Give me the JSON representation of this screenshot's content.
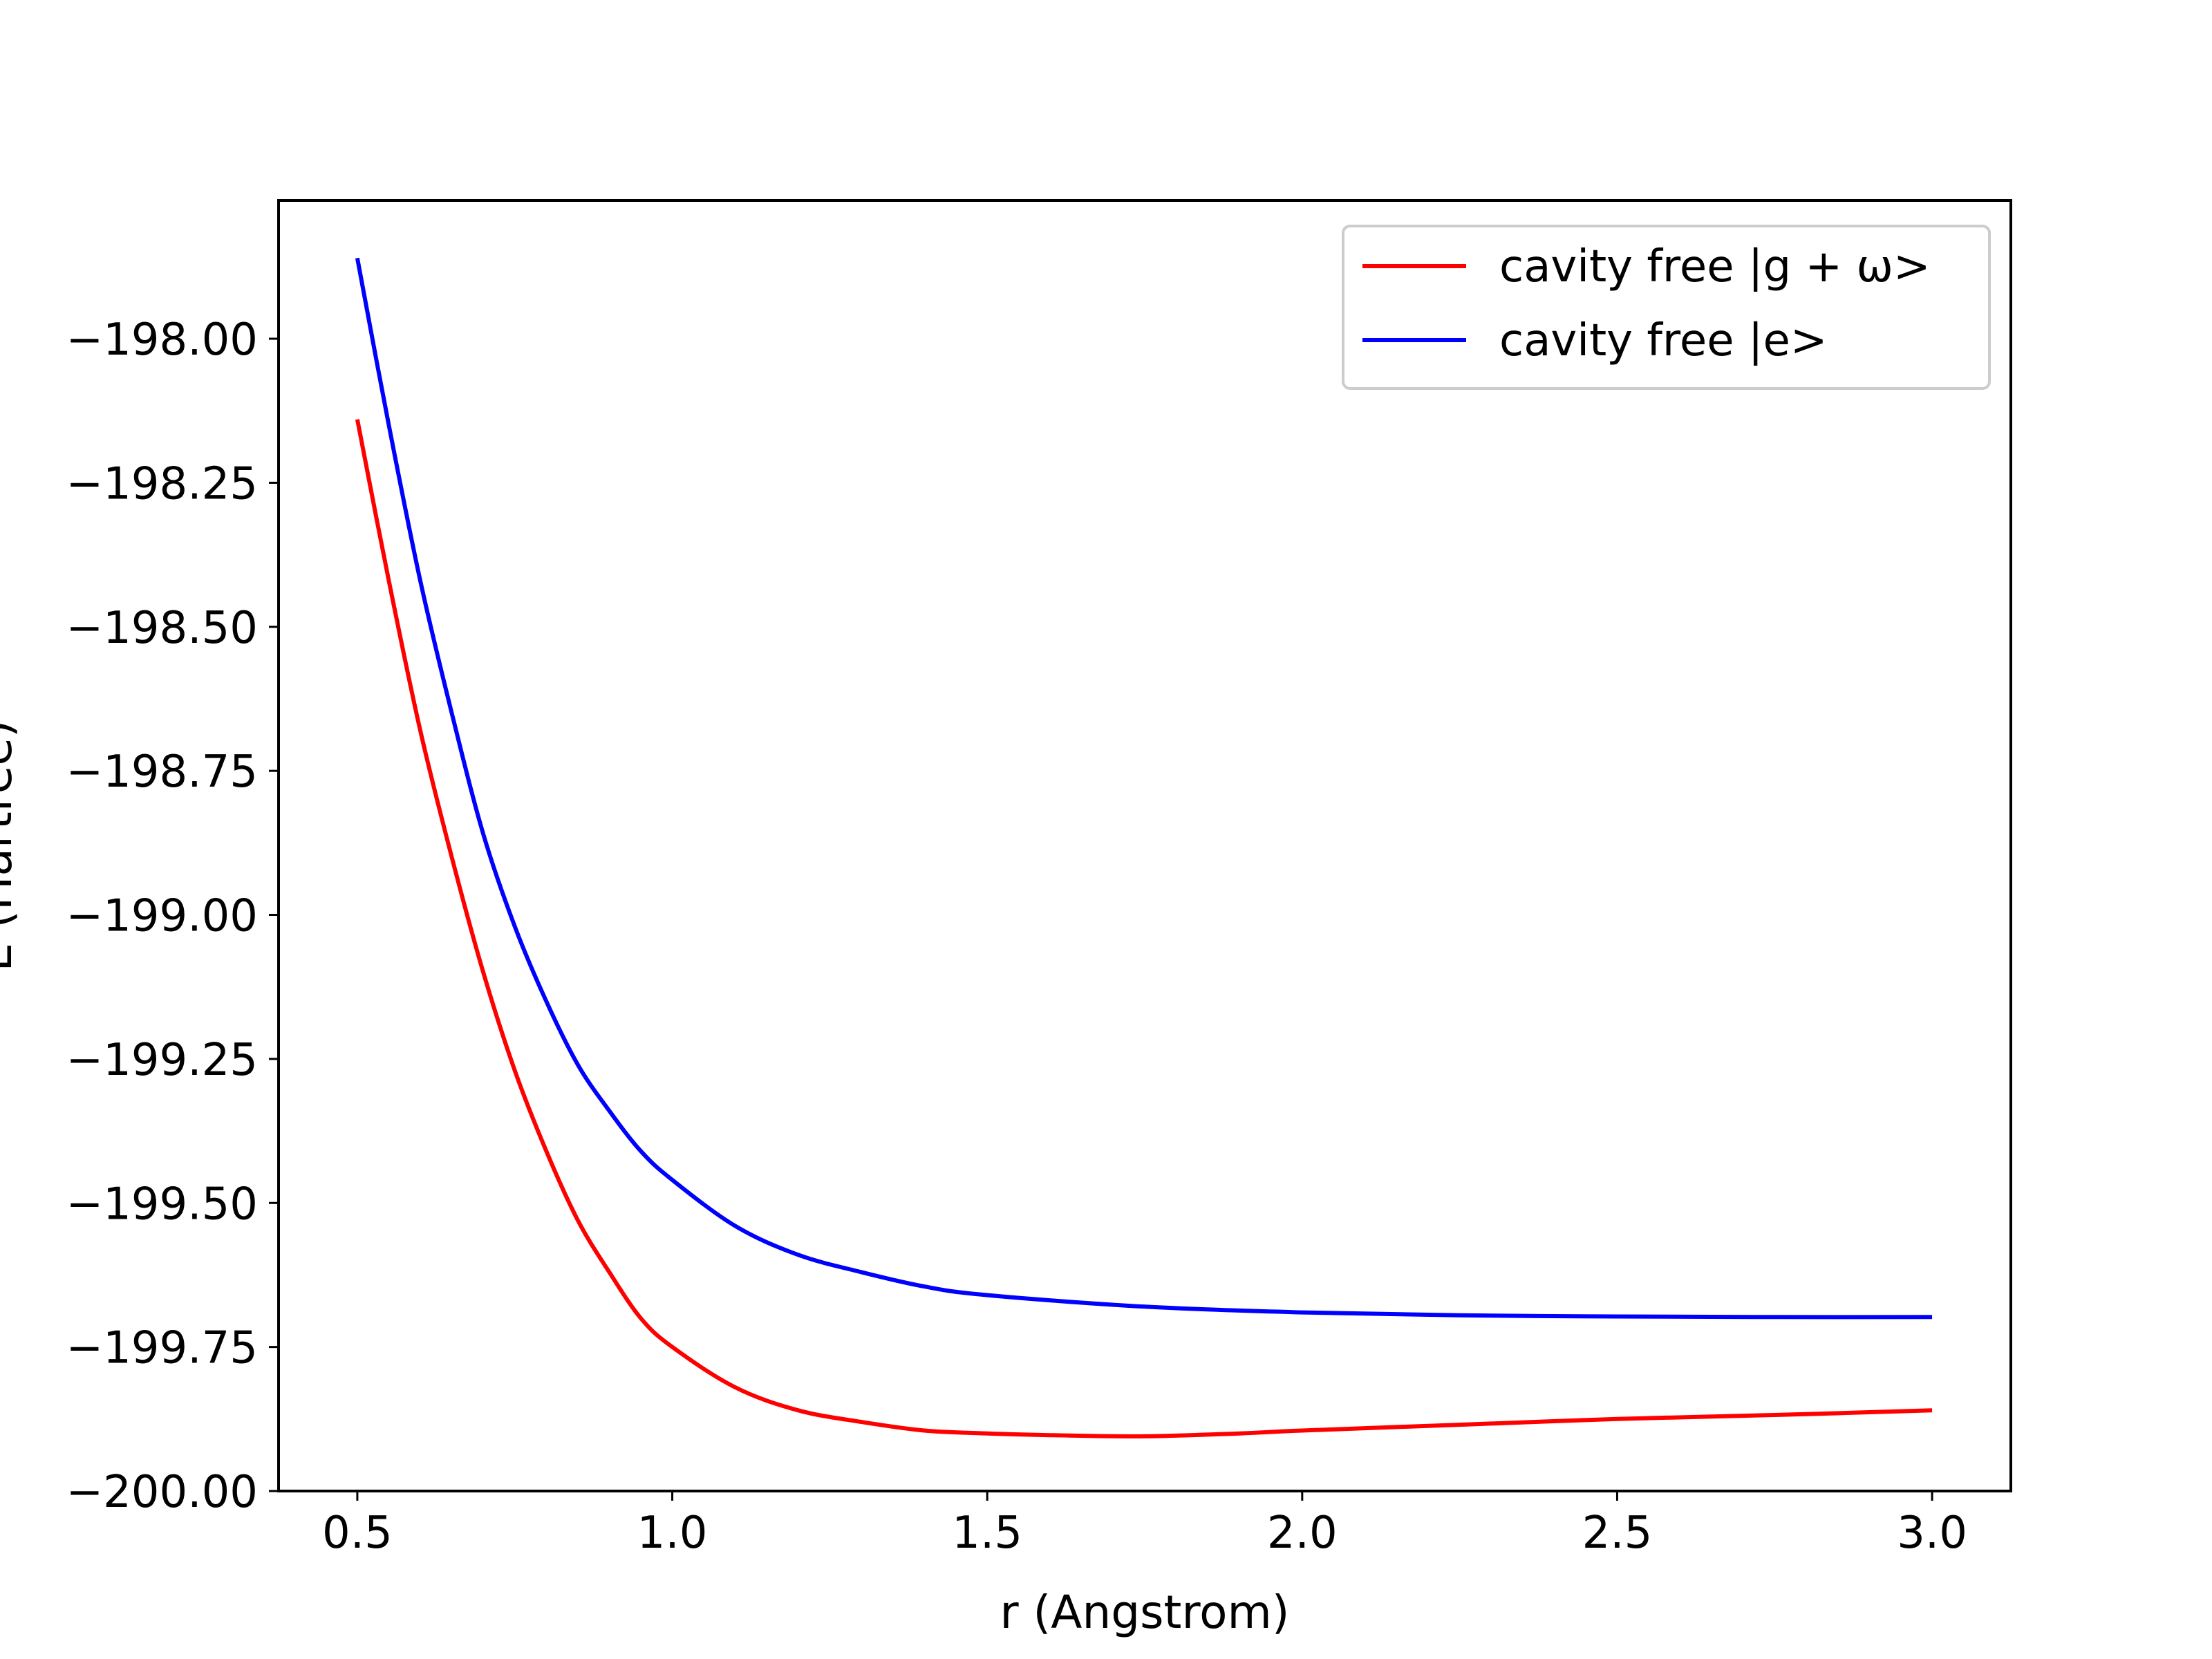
{
  "chart_data": {
    "type": "line",
    "title": "",
    "xlabel": "r (Angstrom)",
    "ylabel": "E (Hartree)",
    "xlim": [
      0.375,
      3.125
    ],
    "ylim": [
      -200.0,
      -197.76
    ],
    "xticks": [
      "0.5",
      "1.0",
      "1.5",
      "2.0",
      "2.5",
      "3.0"
    ],
    "yticks": [
      "−198.00",
      "−198.25",
      "−198.50",
      "−198.75",
      "−199.00",
      "−199.25",
      "−199.50",
      "−199.75",
      "−200.00"
    ],
    "grid": false,
    "legend_position": "top-right",
    "series": [
      {
        "name": "cavity free |g + ω>",
        "color": "#ff0000",
        "x": [
          0.5,
          0.55,
          0.6,
          0.65,
          0.7,
          0.75,
          0.8,
          0.85,
          0.9,
          0.95,
          1.0,
          1.1,
          1.2,
          1.3,
          1.4,
          1.5,
          1.6,
          1.75,
          1.9,
          2.0,
          2.25,
          2.5,
          2.75,
          3.0
        ],
        "y": [
          -198.14,
          -198.42,
          -198.68,
          -198.9,
          -199.1,
          -199.27,
          -199.41,
          -199.53,
          -199.62,
          -199.7,
          -199.75,
          -199.82,
          -199.86,
          -199.88,
          -199.895,
          -199.9,
          -199.903,
          -199.905,
          -199.9,
          -199.895,
          -199.885,
          -199.875,
          -199.868,
          -199.86
        ],
        "smooth": true
      },
      {
        "name": "cavity free |e>",
        "color": "#0000ff",
        "x": [
          0.5,
          0.55,
          0.6,
          0.65,
          0.7,
          0.75,
          0.8,
          0.85,
          0.9,
          0.95,
          1.0,
          1.1,
          1.2,
          1.3,
          1.4,
          1.5,
          1.75,
          2.0,
          2.25,
          2.5,
          2.75,
          3.0
        ],
        "y": [
          -197.86,
          -198.15,
          -198.42,
          -198.65,
          -198.86,
          -199.02,
          -199.15,
          -199.26,
          -199.34,
          -199.41,
          -199.46,
          -199.54,
          -199.59,
          -199.62,
          -199.645,
          -199.66,
          -199.68,
          -199.69,
          -199.695,
          -199.697,
          -199.698,
          -199.698
        ],
        "smooth": true
      }
    ]
  }
}
